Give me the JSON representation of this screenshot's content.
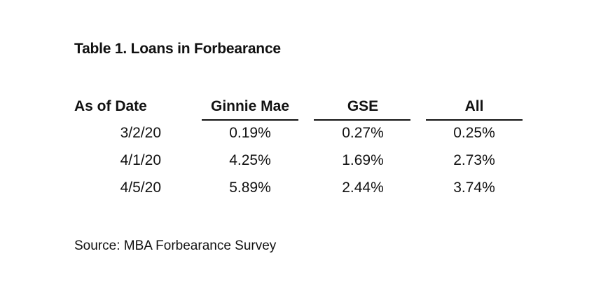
{
  "title": "Table 1. Loans in Forbearance",
  "table": {
    "headers": [
      "As of Date",
      "Ginnie Mae",
      "GSE",
      "All"
    ],
    "rows": [
      [
        "3/2/20",
        "0.19%",
        "0.27%",
        "0.25%"
      ],
      [
        "4/1/20",
        "4.25%",
        "1.69%",
        "2.73%"
      ],
      [
        "4/5/20",
        "5.89%",
        "2.44%",
        "3.74%"
      ]
    ]
  },
  "source": "Source: MBA Forbearance Survey"
}
